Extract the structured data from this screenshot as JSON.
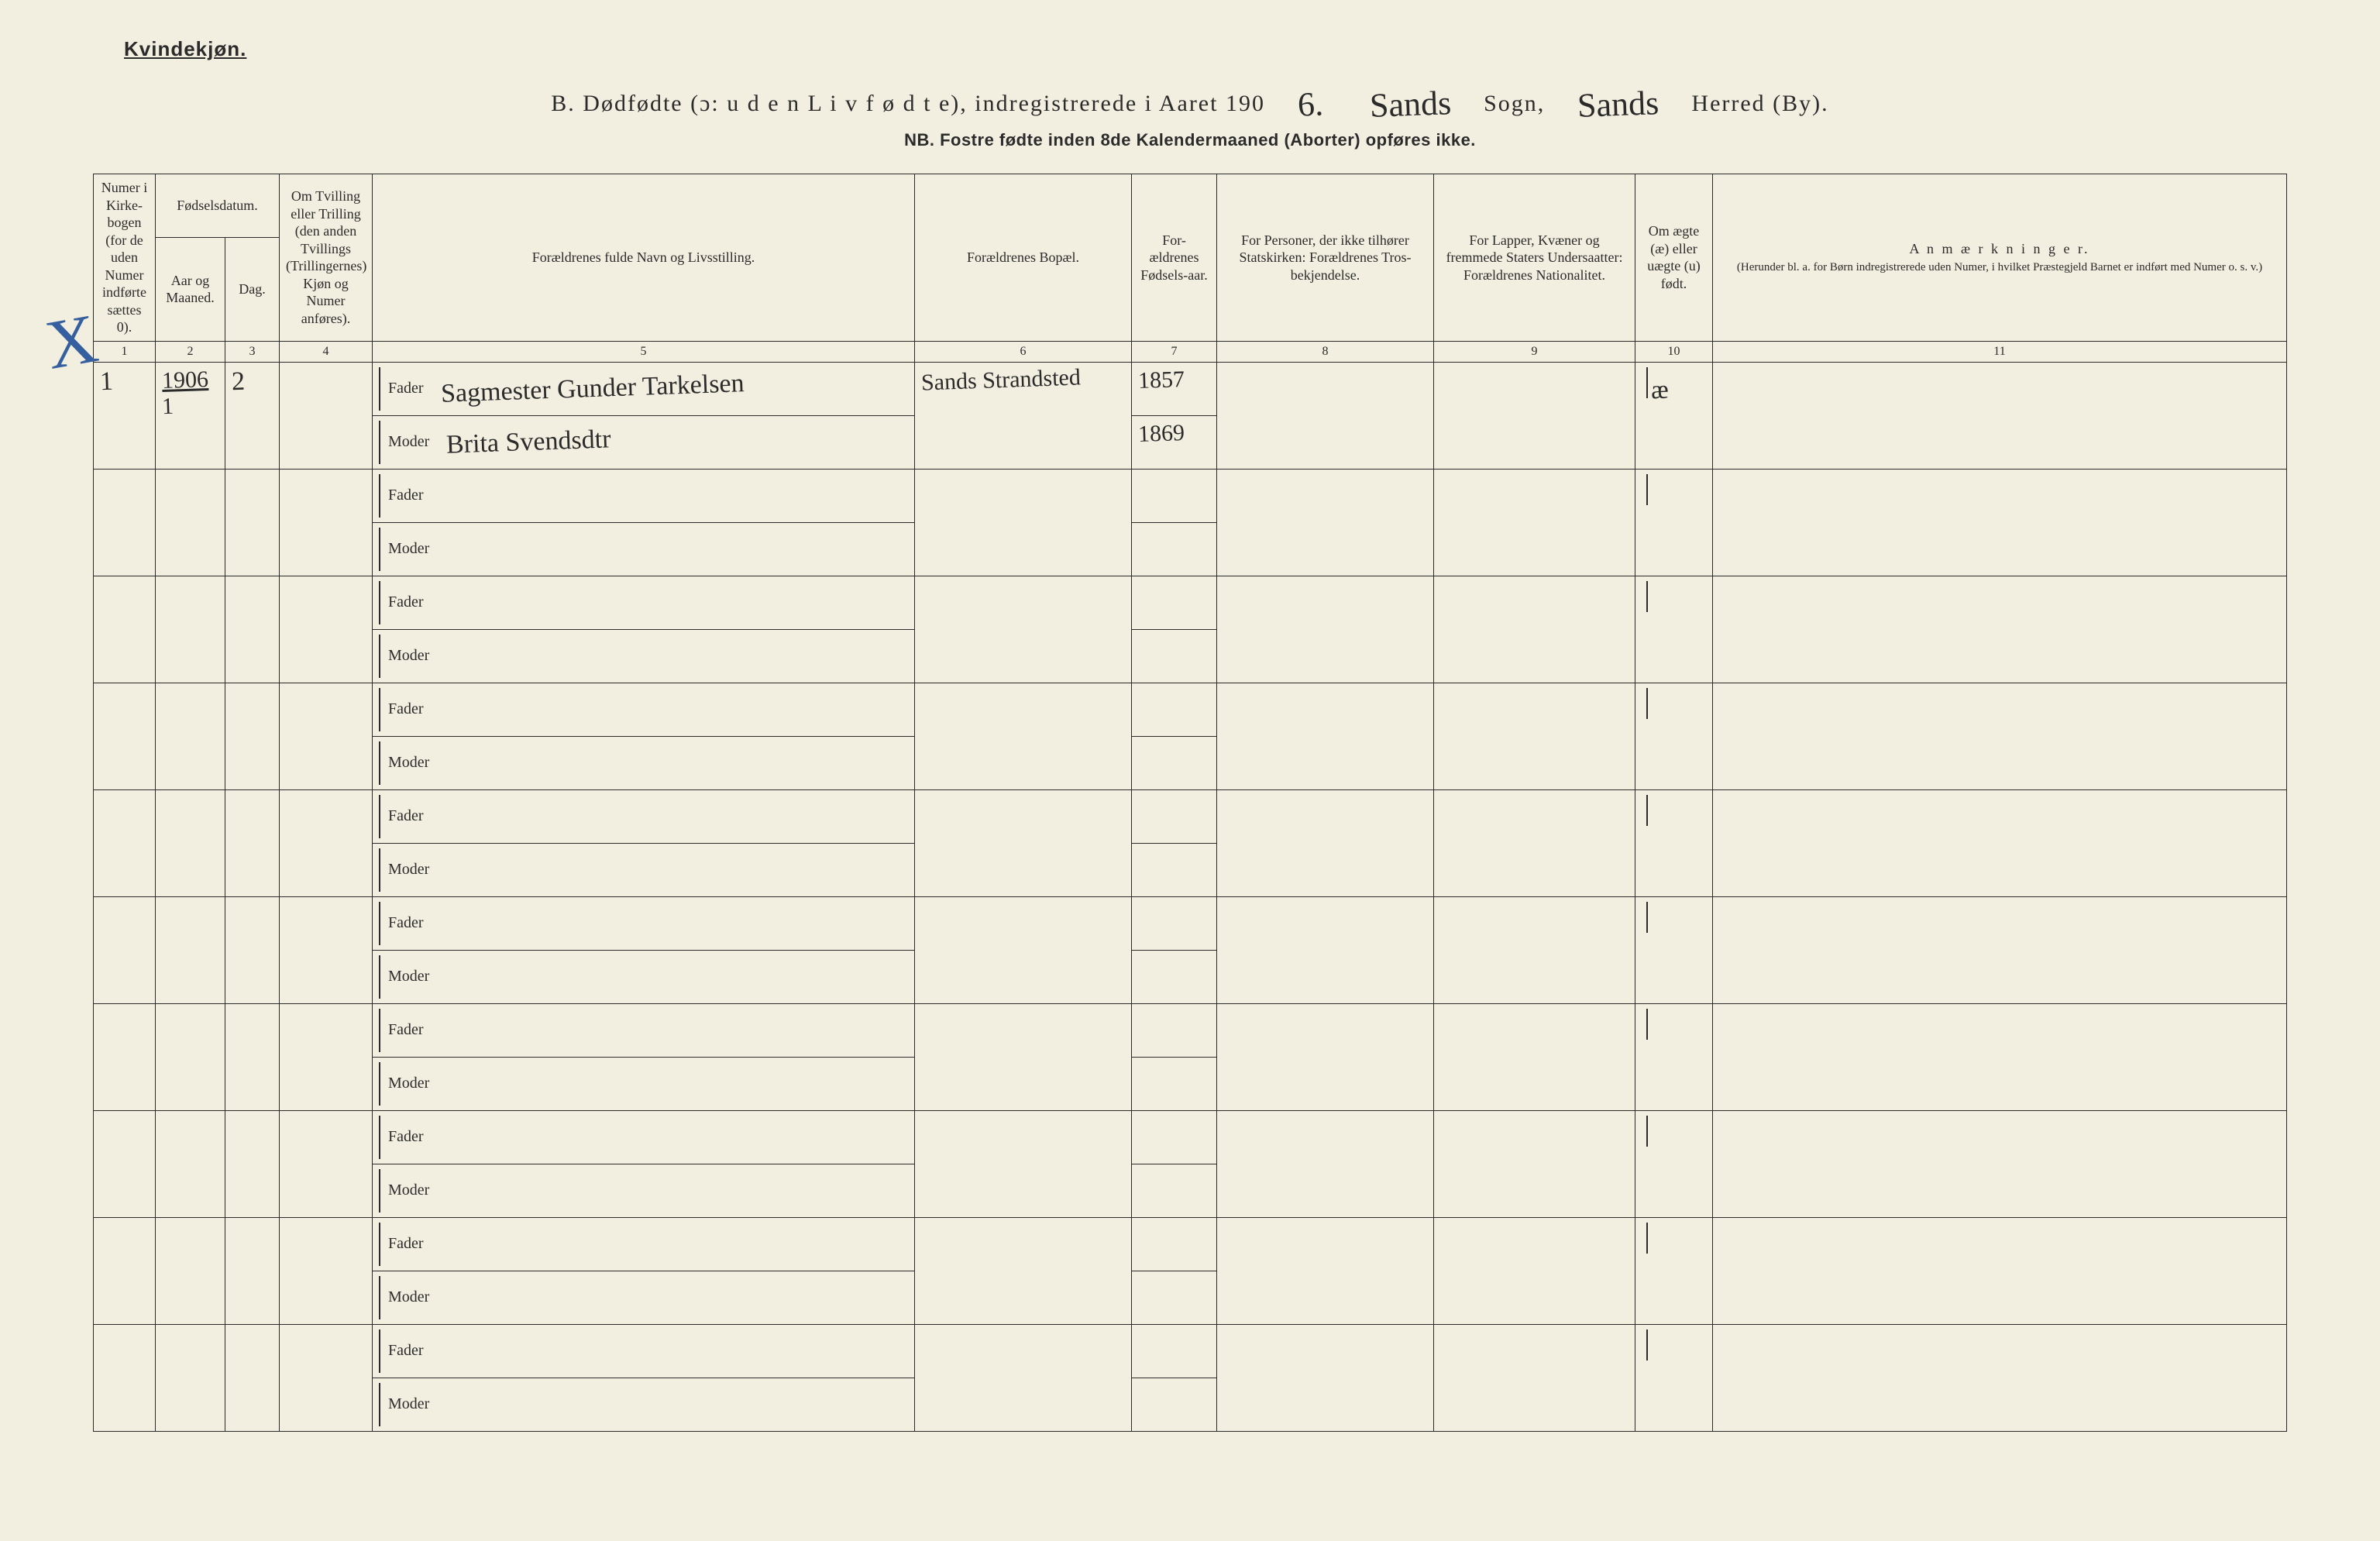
{
  "header": {
    "gender": "Kvindekjøn.",
    "title_prefix": "B.   Dødfødte (ɔ: u d e n  L i v  f ø d t e),  indregistrerede  i  Aaret  190",
    "year_hand": "6.",
    "sogn_label": "Sogn,",
    "sogn_hand": "Sands",
    "herred_label": "Herred (By).",
    "herred_hand": "Sands",
    "subtitle": "NB.  Fostre fødte inden 8de Kalendermaaned (Aborter) opføres ikke."
  },
  "columns": {
    "c1": "Numer i Kirke-bogen (for de uden Numer indførte sættes 0).",
    "c2a": "Fødselsdatum.",
    "c2b_aar": "Aar og Maaned.",
    "c2b_dag": "Dag.",
    "c4": "Om Tvilling eller Trilling (den anden Tvillings (Trillingernes) Kjøn og Numer anføres).",
    "c5": "Forældrenes fulde Navn og Livsstilling.",
    "c6": "Forældrenes Bopæl.",
    "c7": "For-ældrenes Fødsels-aar.",
    "c8": "For Personer, der ikke tilhører Statskirken: Forældrenes Tros-bekjendelse.",
    "c9": "For Lapper, Kvæner og fremmede Staters Undersaatter: Forældrenes Nationalitet.",
    "c10": "Om ægte (æ) eller uægte (u) født.",
    "c11": "A n m æ r k n i n g e r.",
    "c11sub": "(Herunder bl. a. for Børn indregistrerede uden Numer, i hvilket Præstegjeld Barnet er indført med Numer o. s. v.)"
  },
  "colnums": [
    "1",
    "2",
    "3",
    "4",
    "5",
    "6",
    "7",
    "8",
    "9",
    "10",
    "11"
  ],
  "labels": {
    "fader": "Fader",
    "moder": "Moder"
  },
  "entries": [
    {
      "num": "1",
      "year_month": "1906 / 1",
      "day": "2",
      "twin": "",
      "fader_name": "Sagmester Gunder Tarkelsen",
      "moder_name": "Brita Svendsdtr",
      "bopael": "Sands Strandsted",
      "fader_aar": "1857",
      "moder_aar": "1869",
      "tros": "",
      "nat": "",
      "aegte": "æ",
      "anm": ""
    }
  ],
  "blank_rows": 9,
  "style": {
    "background_color": "#f2efe0",
    "ink_color": "#2b2b2b",
    "blue_mark_color": "#355f9e",
    "header_fontsize": 18,
    "body_fontsize": 20,
    "hand_fontsize": 34
  }
}
